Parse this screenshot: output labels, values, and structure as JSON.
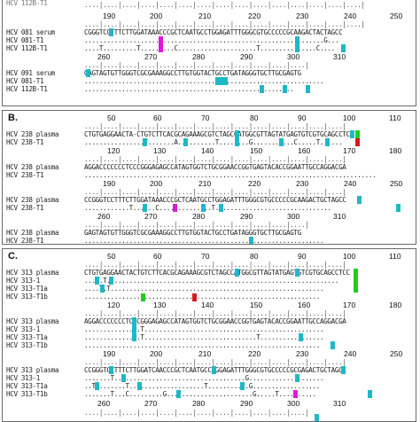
{
  "colors": {
    "border": "#6b6b6b",
    "cyan_highlight": "#1fb8c8",
    "magenta_highlight": "#e018d8",
    "green_highlight": "#22cc22",
    "red_highlight": "#d81818"
  },
  "panelA": {
    "block1": {
      "ruler_numbers": [
        "190",
        "200",
        "210",
        "220",
        "230",
        "240",
        "250"
      ],
      "ruler": "....|....|....|....|....|....|....|....|....|....|....|....|....|....|....|",
      "rows": [
        {
          "label": "HCV 081 serum",
          "seq": "CGGGTCCTTTCTTGGATAAACCCGCTCAATGCCTGGAGATTTGGGCGTGCCCCCGCAAGACTACTAGCC"
        },
        {
          "label": "HCV 081-T1",
          "seq": "................................................................G..."
        },
        {
          "label": "HCV 112B-T1",
          "seq": "....T.........T.........C.....................T...............C...."
        }
      ]
    },
    "block2": {
      "ruler_numbers": [
        "260",
        "270",
        "280",
        "290",
        "300",
        "310"
      ],
      "ruler": "....|....|....|....|....|....|....|....|....|....|....|....|",
      "rows": [
        {
          "label": "HCV 091 serum",
          "seq": "GAGTAGTGTTGGGTCGCGAAAGGCCTTGTGGTACTGCCTGATAGGGTGCTTGCGAGTG"
        },
        {
          "label": "HCV 081-T1",
          "seq": "................................................................"
        },
        {
          "label": "HCV 112B-T1",
          "seq": "...............................................G........"
        }
      ]
    }
  },
  "panelB": {
    "label": "B.",
    "block1": {
      "ruler_numbers": [
        "50",
        "60",
        "70",
        "80",
        "90",
        "100",
        "110"
      ],
      "ruler": "....|....|....|....|....|....|....|....|....|....|....|....|....|....|",
      "rows": [
        {
          "label": "HCV 238 plasma",
          "seq": "CTGTGAGGAACTA-CTGTCTTCACGCAGAAAGCGTCTAGCCATGGCGTTAGTATGAGTGTCGTGCAGCCTCC"
        },
        {
          "label": "HCV 238-T1",
          "seq": "................T.......A..........T........G...........C.....T......"
        }
      ]
    },
    "block2": {
      "ruler_numbers": [
        "120",
        "130",
        "140",
        "150",
        "160",
        "170",
        "180"
      ],
      "ruler": "....|....|....|....|....|....|....|....|....|....|....|....|....|....|",
      "rows": [
        {
          "label": "HCV 238 plasma",
          "seq": "AGGACCCCCCCTCCCGGGAGAGCCATAGTGGTCTGCGGAACCGGTGAGTACACCGGAATTGCCAGGACGA"
        },
        {
          "label": "HCV 238-T1",
          "seq": ".............................................................................."
        }
      ]
    },
    "block3": {
      "ruler_numbers": [
        "190",
        "200",
        "210",
        "220",
        "230",
        "240",
        "250"
      ],
      "ruler": "....|....|....|....|....|....|....|....|....|....|....|....|....|....|",
      "rows": [
        {
          "label": "HCV 238 plasma",
          "seq": "CCGGGTCCTTTCTTGGATAAACCCGCTCAATGCCTGGAGATTTGGGCGTGCCCCCGCAAGACTGCTAGCC"
        },
        {
          "label": "HCV 238-T1",
          "seq": "............T......C..............T..............................."
        }
      ]
    },
    "block4": {
      "ruler_numbers": [
        "260",
        "270",
        "280",
        "290",
        "300",
        "310"
      ],
      "ruler": "....|....|....|....|....|....|....|....|....|....|....|....|",
      "rows": [
        {
          "label": "HCV 238 plasma",
          "seq": "GAGTAGTGTTGGGTCGCGAAAGGCCTTGTGGTACTGCCTGATAGGGTGCTTGCGAGTG"
        },
        {
          "label": "HCV 238-T1",
          "seq": "................................................................"
        }
      ]
    }
  },
  "panelC": {
    "label": "C.",
    "block1": {
      "ruler_numbers": [
        "50",
        "60",
        "70",
        "80",
        "90",
        "100",
        "110"
      ],
      "ruler": "....|....|....|....|....|....|....|....|....|....|....|....|....|....|",
      "rows": [
        {
          "label": "HCV 313 plasma",
          "seq": "CTGTGAGGAACTACTGTCTTCACGCAGAAAGCGTCTAGCCATGGCGTTAGTATGAGTGTCGTGCAGCCTCC"
        },
        {
          "label": "HCV 313-1",
          "seq": "...T.T.............................................................."
        },
        {
          "label": "HCV 313-T1a",
          "seq": "....T.T........................................................."
        },
        {
          "label": "HCV 313-T1b",
          "seq": "..............................................................."
        }
      ]
    },
    "block2": {
      "ruler_numbers": [
        "120",
        "130",
        "140",
        "150",
        "160",
        "170",
        "180"
      ],
      "ruler": "....|....|....|....|....|....|....|....|....|....|....|....|....|....|",
      "rows": [
        {
          "label": "HCV 313 plasma",
          "seq": "AGGACCCCCCCTCCCGGGAGAGCCATAGTGGTCTGCGGAACCGGTGAGTACACCGGAATTGCCAGGACGA"
        },
        {
          "label": "HCV 313-1",
          "seq": "...............T................................................"
        },
        {
          "label": "HCV 313-T1a",
          "seq": "...............T..............................T................."
        },
        {
          "label": "HCV 313-T1b",
          "seq": "..............................................................."
        }
      ]
    },
    "block3": {
      "ruler_numbers": [
        "190",
        "200",
        "210",
        "220",
        "230",
        "240",
        "250"
      ],
      "ruler": "....|....|....|....|....|....|....|....|....|....|....|....|....|....|",
      "rows": [
        {
          "label": "HCV 313 plasma",
          "seq": "CCGGGTCCTTTCTTGGATCAACCCGCTCAATGCCTGGAGATTTGGGCGTGCCCCCGCGAGACTGCTAGCC"
        },
        {
          "label": "HCV 313-1",
          "seq": ".......T...................................G...................."
        },
        {
          "label": "HCV 313-T1a",
          "seq": "..T........T....................T...........G.................."
        },
        {
          "label": "HCV 313-T1b",
          "seq": ".......T...C.........G.......................G.....T.........."
        }
      ]
    },
    "block4": {
      "ruler_numbers": [
        "260",
        "270",
        "280",
        "290",
        "300",
        "310"
      ],
      "ruler": "....|....|....|....|....|....|....|....|....|....|....|....|"
    }
  }
}
